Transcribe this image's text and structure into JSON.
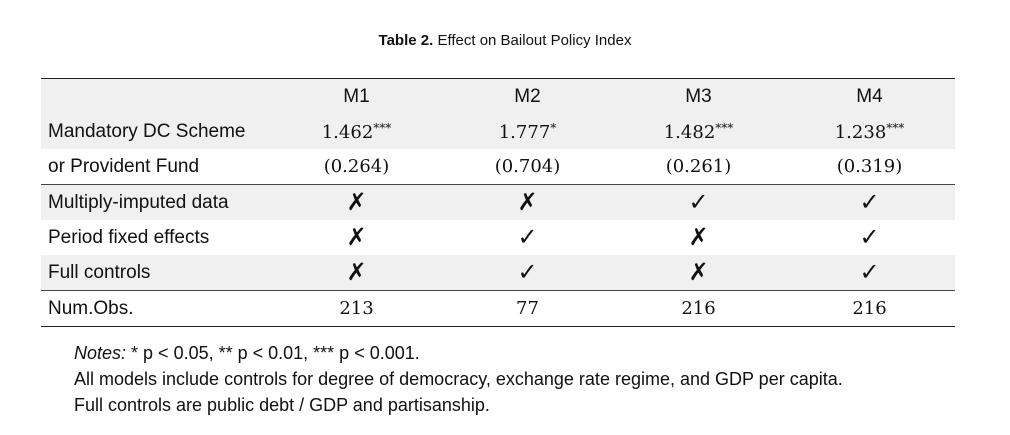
{
  "caption": {
    "label": "Table 2.",
    "text": "Effect on Bailout Policy Index"
  },
  "columns": [
    "M1",
    "M2",
    "M3",
    "M4"
  ],
  "coef_row": {
    "label": "Mandatory DC Scheme",
    "values": [
      {
        "value": "1.462",
        "stars": "***"
      },
      {
        "value": "1.777",
        "stars": "*"
      },
      {
        "value": "1.482",
        "stars": "***"
      },
      {
        "value": "1.238",
        "stars": "***"
      }
    ]
  },
  "se_row": {
    "label": "or Provident Fund",
    "values": [
      "(0.264)",
      "(0.704)",
      "(0.261)",
      "(0.319)"
    ]
  },
  "check_rows": [
    {
      "label": "Multiply-imputed data",
      "marks": [
        "✗",
        "✗",
        "✓",
        "✓"
      ]
    },
    {
      "label": "Period fixed effects",
      "marks": [
        "✗",
        "✓",
        "✗",
        "✓"
      ]
    },
    {
      "label": "Full controls",
      "marks": [
        "✗",
        "✓",
        "✗",
        "✓"
      ]
    }
  ],
  "obs_row": {
    "label": "Num.Obs.",
    "values": [
      "213",
      "77",
      "216",
      "216"
    ]
  },
  "notes": {
    "label": "Notes:",
    "significance": " * p < 0.05, ** p < 0.01, *** p < 0.001.",
    "line2": "All models include controls for degree of democracy, exchange rate regime, and GDP per capita.",
    "line3": "Full controls are public debt / GDP and partisanship."
  }
}
